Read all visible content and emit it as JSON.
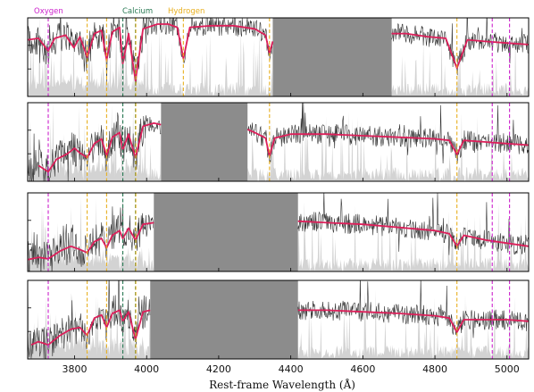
{
  "chart_data": {
    "type": "line",
    "xlabel": "Rest-frame Wavelength (Å)",
    "xlim": [
      3670,
      5060
    ],
    "xticks": [
      3800,
      4000,
      4200,
      4400,
      4600,
      4800,
      5000
    ],
    "xtick_labels": [
      "3800",
      "4000",
      "4200",
      "4400",
      "4600",
      "4800",
      "5000"
    ],
    "legend": {
      "placement": "top-left, above first panel",
      "entries": [
        {
          "label": "Oxygen",
          "color": "#cc22cc"
        },
        {
          "label": "Calcium",
          "color": "#2a7a55"
        },
        {
          "label": "Hydrogen",
          "color": "#e8b020"
        }
      ]
    },
    "line_markers": {
      "oxygen": [
        3727,
        4959,
        5007
      ],
      "calcium": [
        3934,
        3969
      ],
      "hydrogen": [
        3835,
        3889,
        3970,
        4102,
        4341,
        4861
      ]
    },
    "colors": {
      "observed_flux": "#333333",
      "model_fit": "#dd1f5a",
      "noise": "#d3d3d3",
      "masked_region": "#8c8c8c"
    },
    "panels": [
      {
        "masked_range": [
          4350,
          4680
        ],
        "coverage": [
          3670,
          5060
        ],
        "fit": [
          [
            3670,
            0.72
          ],
          [
            3700,
            0.74
          ],
          [
            3727,
            0.58
          ],
          [
            3745,
            0.74
          ],
          [
            3775,
            0.78
          ],
          [
            3798,
            0.62
          ],
          [
            3815,
            0.76
          ],
          [
            3835,
            0.5
          ],
          [
            3855,
            0.8
          ],
          [
            3875,
            0.84
          ],
          [
            3889,
            0.46
          ],
          [
            3905,
            0.82
          ],
          [
            3925,
            0.88
          ],
          [
            3934,
            0.42
          ],
          [
            3950,
            0.8
          ],
          [
            3969,
            0.2
          ],
          [
            3990,
            0.86
          ],
          [
            4030,
            0.92
          ],
          [
            4060,
            0.92
          ],
          [
            4085,
            0.88
          ],
          [
            4102,
            0.48
          ],
          [
            4120,
            0.88
          ],
          [
            4180,
            0.9
          ],
          [
            4240,
            0.9
          ],
          [
            4300,
            0.86
          ],
          [
            4330,
            0.78
          ],
          [
            4341,
            0.55
          ],
          [
            4350,
            0.7
          ],
          [
            4680,
            0.8
          ],
          [
            4720,
            0.8
          ],
          [
            4780,
            0.76
          ],
          [
            4830,
            0.74
          ],
          [
            4861,
            0.36
          ],
          [
            4890,
            0.72
          ],
          [
            4940,
            0.7
          ],
          [
            5000,
            0.68
          ],
          [
            5060,
            0.66
          ]
        ]
      },
      {
        "masked_range": [
          4040,
          4280
        ],
        "coverage": [
          3670,
          5060
        ],
        "fit": [
          [
            3700,
            0.2
          ],
          [
            3727,
            0.12
          ],
          [
            3750,
            0.28
          ],
          [
            3780,
            0.35
          ],
          [
            3800,
            0.42
          ],
          [
            3815,
            0.36
          ],
          [
            3835,
            0.3
          ],
          [
            3855,
            0.48
          ],
          [
            3875,
            0.54
          ],
          [
            3889,
            0.32
          ],
          [
            3905,
            0.56
          ],
          [
            3925,
            0.62
          ],
          [
            3934,
            0.4
          ],
          [
            3950,
            0.6
          ],
          [
            3969,
            0.3
          ],
          [
            3990,
            0.7
          ],
          [
            4020,
            0.74
          ],
          [
            4040,
            0.72
          ],
          [
            4280,
            0.66
          ],
          [
            4300,
            0.62
          ],
          [
            4330,
            0.55
          ],
          [
            4341,
            0.32
          ],
          [
            4355,
            0.55
          ],
          [
            4400,
            0.6
          ],
          [
            4500,
            0.6
          ],
          [
            4600,
            0.58
          ],
          [
            4700,
            0.56
          ],
          [
            4800,
            0.54
          ],
          [
            4840,
            0.52
          ],
          [
            4861,
            0.34
          ],
          [
            4880,
            0.52
          ],
          [
            4940,
            0.5
          ],
          [
            5000,
            0.48
          ],
          [
            5060,
            0.46
          ]
        ]
      },
      {
        "masked_range": [
          4020,
          4420
        ],
        "coverage": [
          3670,
          5060
        ],
        "fit": [
          [
            3670,
            0.15
          ],
          [
            3700,
            0.18
          ],
          [
            3727,
            0.16
          ],
          [
            3760,
            0.26
          ],
          [
            3790,
            0.32
          ],
          [
            3815,
            0.28
          ],
          [
            3835,
            0.24
          ],
          [
            3855,
            0.38
          ],
          [
            3875,
            0.42
          ],
          [
            3889,
            0.3
          ],
          [
            3905,
            0.46
          ],
          [
            3925,
            0.52
          ],
          [
            3934,
            0.42
          ],
          [
            3950,
            0.55
          ],
          [
            3969,
            0.4
          ],
          [
            3990,
            0.6
          ],
          [
            4020,
            0.62
          ],
          [
            4420,
            0.64
          ],
          [
            4500,
            0.62
          ],
          [
            4600,
            0.6
          ],
          [
            4700,
            0.56
          ],
          [
            4800,
            0.52
          ],
          [
            4840,
            0.48
          ],
          [
            4861,
            0.32
          ],
          [
            4880,
            0.46
          ],
          [
            4940,
            0.4
          ],
          [
            5000,
            0.36
          ],
          [
            5060,
            0.32
          ]
        ]
      },
      {
        "masked_range": [
          4010,
          4420
        ],
        "coverage": [
          3670,
          5060
        ],
        "fit": [
          [
            3680,
            0.18
          ],
          [
            3700,
            0.22
          ],
          [
            3727,
            0.18
          ],
          [
            3760,
            0.3
          ],
          [
            3790,
            0.38
          ],
          [
            3815,
            0.4
          ],
          [
            3835,
            0.3
          ],
          [
            3855,
            0.52
          ],
          [
            3875,
            0.56
          ],
          [
            3889,
            0.4
          ],
          [
            3905,
            0.58
          ],
          [
            3925,
            0.62
          ],
          [
            3934,
            0.48
          ],
          [
            3950,
            0.6
          ],
          [
            3969,
            0.25
          ],
          [
            3990,
            0.6
          ],
          [
            4010,
            0.62
          ],
          [
            4420,
            0.62
          ],
          [
            4500,
            0.62
          ],
          [
            4600,
            0.6
          ],
          [
            4700,
            0.58
          ],
          [
            4800,
            0.55
          ],
          [
            4840,
            0.52
          ],
          [
            4861,
            0.34
          ],
          [
            4880,
            0.5
          ],
          [
            4940,
            0.5
          ],
          [
            5000,
            0.5
          ],
          [
            5060,
            0.48
          ]
        ]
      }
    ]
  }
}
